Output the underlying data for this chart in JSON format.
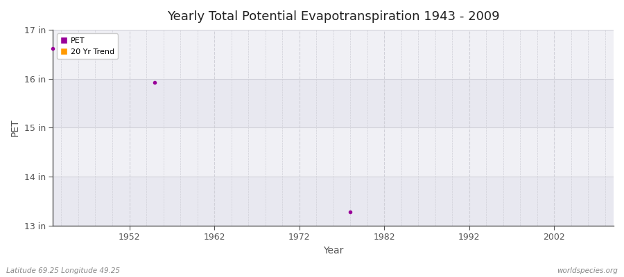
{
  "title": "Yearly Total Potential Evapotranspiration 1943 - 2009",
  "xlabel": "Year",
  "ylabel": "PET",
  "xlim": [
    1943,
    2009
  ],
  "ylim": [
    13,
    17
  ],
  "yticks": [
    13,
    14,
    15,
    16,
    17
  ],
  "ytick_labels": [
    "13 in",
    "14 in",
    "15 in",
    "16 in",
    "17 in"
  ],
  "xticks": [
    1952,
    1962,
    1972,
    1982,
    1992,
    2002
  ],
  "fig_bg_color": "#ffffff",
  "plot_bg_color": "#f0f0f5",
  "band_color_light": "#e8e8f0",
  "band_color_lighter": "#f0f0f5",
  "grid_color": "#d0d0d8",
  "spine_color": "#555555",
  "tick_color": "#555555",
  "pet_color": "#990099",
  "trend_color": "#ff9900",
  "pet_points": [
    [
      1943,
      16.62
    ],
    [
      1955,
      15.92
    ],
    [
      1978,
      13.28
    ]
  ],
  "subtitle_left": "Latitude 69.25 Longitude 49.25",
  "subtitle_right": "worldspecies.org",
  "legend_labels": [
    "PET",
    "20 Yr Trend"
  ]
}
